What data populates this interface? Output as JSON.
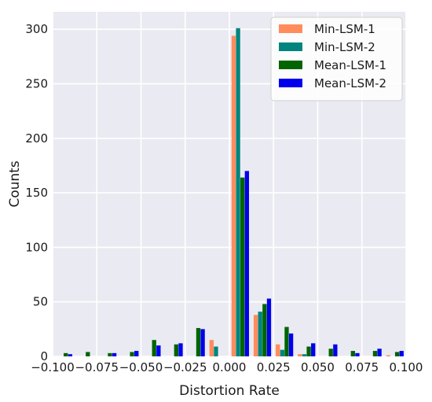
{
  "chart_data": {
    "type": "bar",
    "title": "",
    "xlabel": "Distortion Rate",
    "ylabel": "Counts",
    "xlim": [
      -0.1,
      0.1
    ],
    "ylim": [
      0,
      316
    ],
    "x_ticks": [
      -0.1,
      -0.075,
      -0.05,
      -0.025,
      0.0,
      0.025,
      0.05,
      0.075,
      0.1
    ],
    "x_tick_labels": [
      "−0.100",
      "−0.075",
      "−0.050",
      "−0.025",
      "0.000",
      "0.025",
      "0.050",
      "0.075",
      "0.100"
    ],
    "y_ticks": [
      0,
      50,
      100,
      150,
      200,
      250,
      300
    ],
    "y_tick_labels": [
      "0",
      "50",
      "100",
      "150",
      "200",
      "250",
      "300"
    ],
    "grid": true,
    "background": "#eaeaf2",
    "legend_position": "top-right",
    "bin_edges": [
      -0.1,
      -0.0875,
      -0.075,
      -0.0625,
      -0.05,
      -0.0375,
      -0.025,
      -0.0125,
      0.0,
      0.0125,
      0.025,
      0.0375,
      0.05,
      0.0625,
      0.075,
      0.0875,
      0.1
    ],
    "series": [
      {
        "name": "Min-LSM-1",
        "color": "#ff8c5a",
        "values": [
          0,
          0,
          0,
          0,
          0,
          0,
          0,
          15,
          294,
          38,
          11,
          2,
          0,
          0,
          0,
          1
        ]
      },
      {
        "name": "Min-LSM-2",
        "color": "#00847e",
        "values": [
          0,
          0,
          0,
          0,
          0,
          0,
          0,
          9,
          301,
          41,
          6,
          2,
          0,
          0,
          0,
          0
        ]
      },
      {
        "name": "Mean-LSM-1",
        "color": "#006400",
        "values": [
          3,
          4,
          3,
          4,
          15,
          11,
          26,
          0,
          164,
          48,
          27,
          9,
          7,
          5,
          5,
          4
        ]
      },
      {
        "name": "Mean-LSM-2",
        "color": "#0000ee",
        "values": [
          2,
          0,
          3,
          5,
          10,
          12,
          25,
          0,
          170,
          53,
          21,
          12,
          11,
          3,
          7,
          5
        ]
      }
    ]
  }
}
